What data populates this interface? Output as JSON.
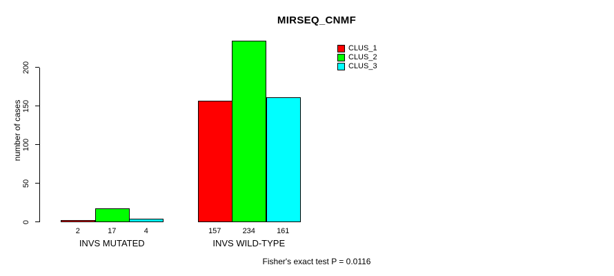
{
  "title": "MIRSEQ_CNMF",
  "footer": "Fisher's exact test P = 0.0116",
  "y_axis": {
    "label": "number of cases",
    "ticks": [
      0,
      50,
      100,
      150,
      200
    ]
  },
  "colors": {
    "background": "#ffffff",
    "axis": "#000000",
    "bar_border": "#000000",
    "clus_1": "#ff0000",
    "clus_2": "#00ff00",
    "clus_3": "#00ffff"
  },
  "chart_data": {
    "type": "bar",
    "title": "MIRSEQ_CNMF",
    "xlabel": "",
    "ylabel": "number of cases",
    "categories": [
      "INVS MUTATED",
      "INVS WILD-TYPE"
    ],
    "series": [
      {
        "name": "CLUS_1",
        "color": "#ff0000",
        "values": [
          2,
          157
        ]
      },
      {
        "name": "CLUS_2",
        "color": "#00ff00",
        "values": [
          17,
          234
        ]
      },
      {
        "name": "CLUS_3",
        "color": "#00ffff",
        "values": [
          4,
          161
        ]
      }
    ],
    "bar_value_labels": [
      [
        2,
        17,
        4
      ],
      [
        157,
        234,
        161
      ]
    ],
    "yticks": [
      0,
      50,
      100,
      150,
      200
    ],
    "ylim": [
      0,
      240
    ],
    "grid": false,
    "legend_position": "top-right",
    "legend_entries": [
      "CLUS_1",
      "CLUS_2",
      "CLUS_3"
    ],
    "annotation": "Fisher's exact test P = 0.0116"
  }
}
